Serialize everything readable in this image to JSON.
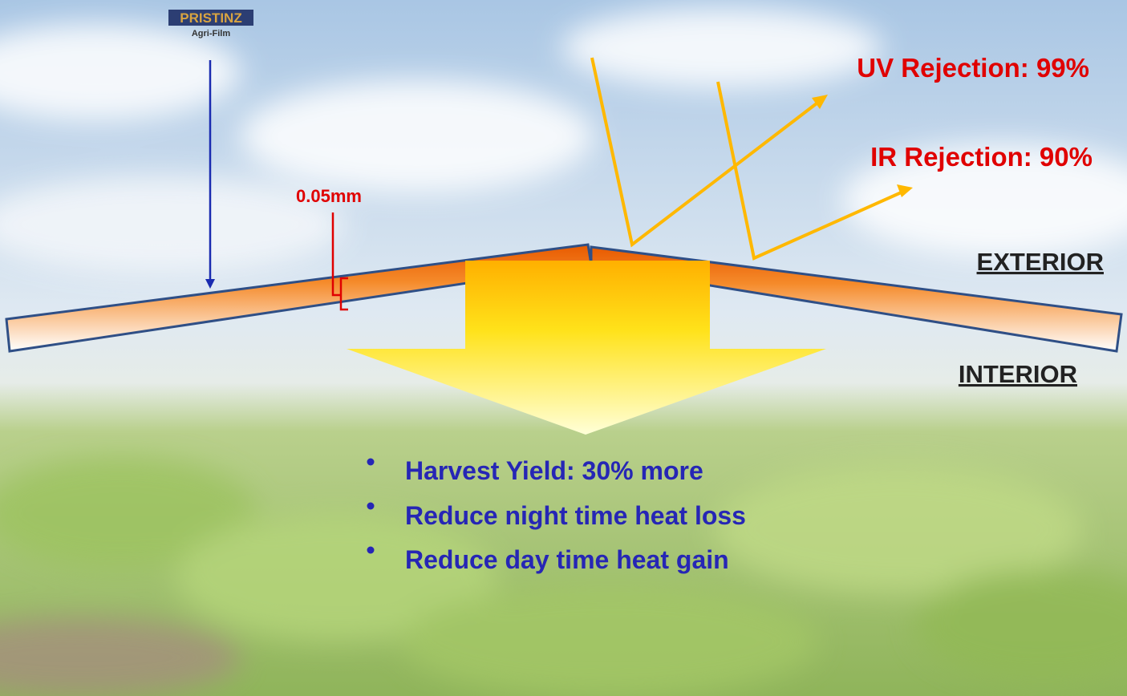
{
  "logo": {
    "brand": "PRISTINZ",
    "subtitle": "Agri-Film"
  },
  "thickness_label": "0.05mm",
  "rejection_labels": [
    "UV Rejection: 99%",
    "IR Rejection: 90%"
  ],
  "side_labels": {
    "exterior": "EXTERIOR",
    "interior": "INTERIOR"
  },
  "benefits": [
    "Harvest Yield: 30% more",
    "Reduce night time heat loss",
    "Reduce day time heat gain"
  ]
}
